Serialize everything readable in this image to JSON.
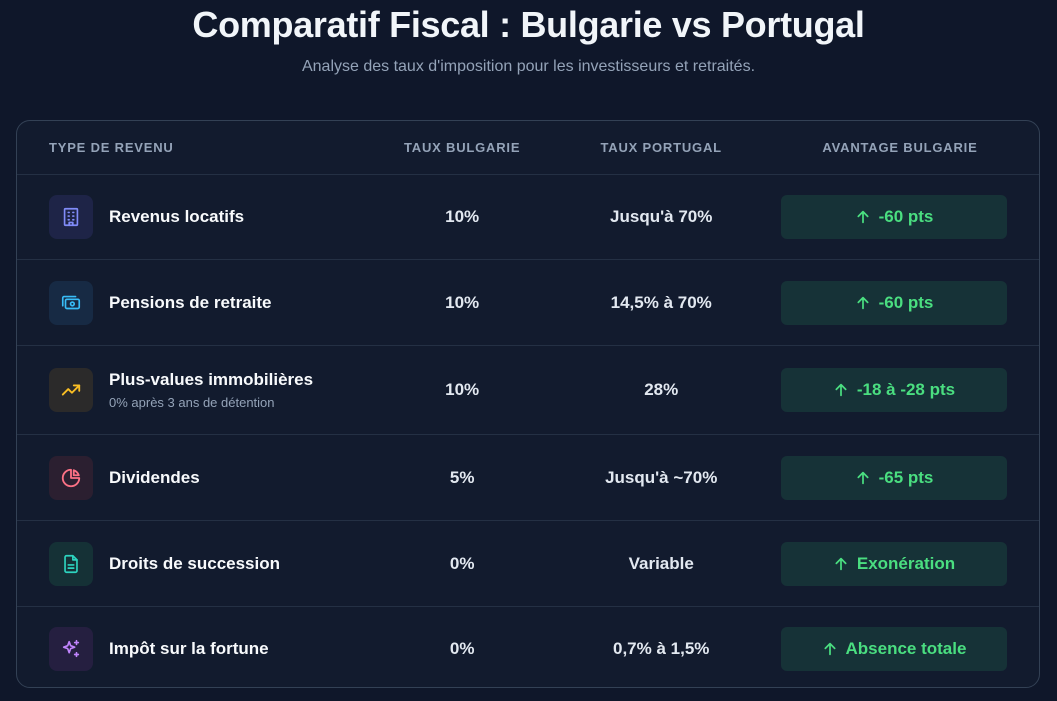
{
  "header": {
    "title": "Comparatif Fiscal : Bulgarie vs Portugal",
    "subtitle": "Analyse des taux d'imposition pour les investisseurs et retraités."
  },
  "table": {
    "columns": [
      "TYPE DE REVENU",
      "TAUX BULGARIE",
      "TAUX PORTUGAL",
      "AVANTAGE BULGARIE"
    ],
    "rows": [
      {
        "label": "Revenus locatifs",
        "note": "",
        "bulgaria": "10%",
        "portugal": "Jusqu'à 70%",
        "advantage": "-60 pts",
        "icon": "building-icon"
      },
      {
        "label": "Pensions de retraite",
        "note": "",
        "bulgaria": "10%",
        "portugal": "14,5% à 70%",
        "advantage": "-60 pts",
        "icon": "money-icon"
      },
      {
        "label": "Plus-values immobilières",
        "note": "0% après 3 ans de détention",
        "bulgaria": "10%",
        "portugal": "28%",
        "advantage": "-18 à -28 pts",
        "icon": "trend-up-icon"
      },
      {
        "label": "Dividendes",
        "note": "",
        "bulgaria": "5%",
        "portugal": "Jusqu'à ~70%",
        "advantage": "-65 pts",
        "icon": "pie-chart-icon"
      },
      {
        "label": "Droits de succession",
        "note": "",
        "bulgaria": "0%",
        "portugal": "Variable",
        "advantage": "Exonération",
        "icon": "document-icon"
      },
      {
        "label": "Impôt sur la fortune",
        "note": "",
        "bulgaria": "0%",
        "portugal": "0,7% à 1,5%",
        "advantage": "Absence totale",
        "icon": "sparkles-icon"
      }
    ]
  },
  "colors": {
    "background": "#0f172a",
    "card": "#121b2e",
    "advantage_text": "#4ade80",
    "advantage_bg": "#163237",
    "icon_building": "#818cf8",
    "icon_money": "#38bdf8",
    "icon_trend": "#fbbf24",
    "icon_pie": "#fb7185",
    "icon_document": "#2dd4bf",
    "icon_sparkles": "#c084fc"
  }
}
